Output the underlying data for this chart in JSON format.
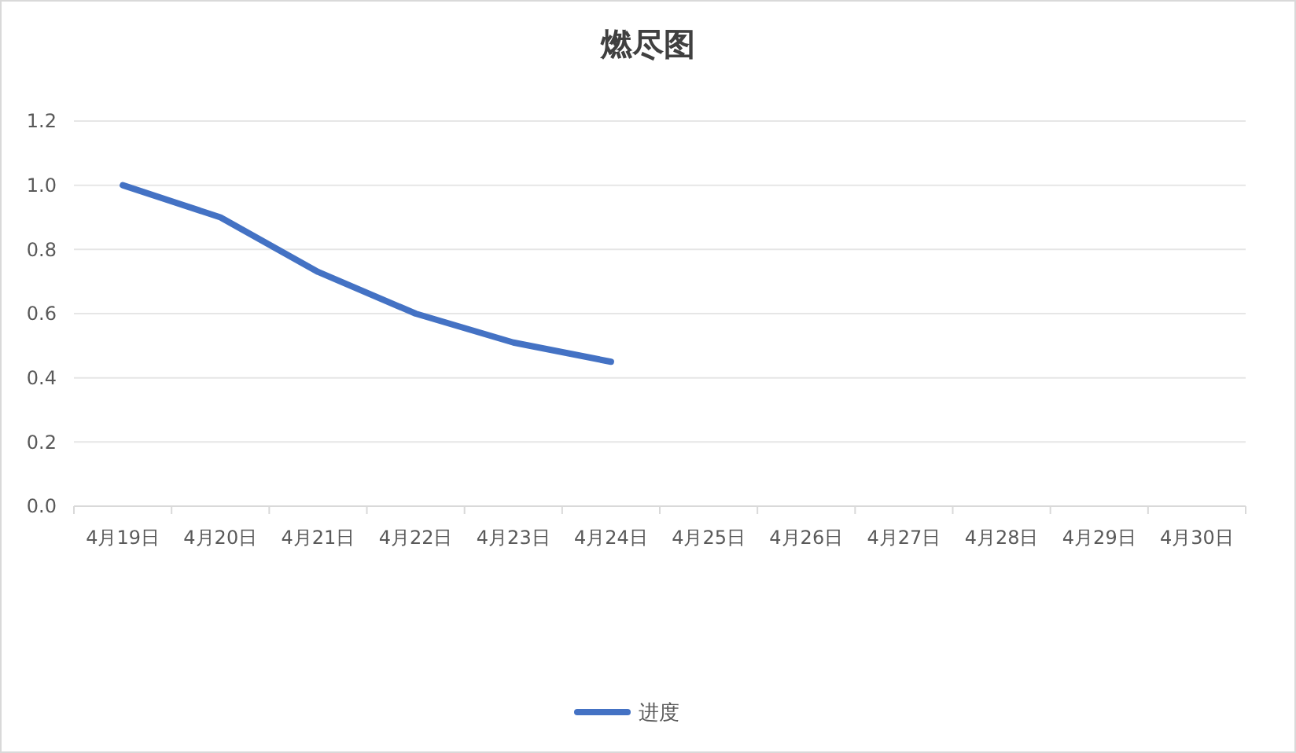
{
  "chart_data": {
    "type": "line",
    "title": "燃尽图",
    "categories": [
      "4月19日",
      "4月20日",
      "4月21日",
      "4月22日",
      "4月23日",
      "4月24日",
      "4月25日",
      "4月26日",
      "4月27日",
      "4月28日",
      "4月29日",
      "4月30日"
    ],
    "series": [
      {
        "name": "进度",
        "color": "#4472c4",
        "values": [
          1.0,
          0.9,
          0.73,
          0.6,
          0.51,
          0.45,
          null,
          null,
          null,
          null,
          null,
          null
        ]
      }
    ],
    "ylim": [
      0,
      1.2
    ],
    "yticks": [
      {
        "value": 0,
        "label": "0.0"
      },
      0.2,
      0.4,
      0.6,
      0.8,
      {
        "value": 1,
        "label": "1.0"
      },
      1.2
    ],
    "grid": "y",
    "legend": "bottom"
  }
}
